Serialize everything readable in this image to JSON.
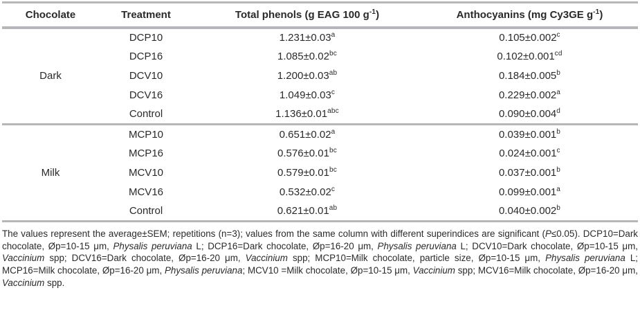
{
  "colors": {
    "page_background": "#ffffff",
    "text": "#2a2a2a",
    "rule_gray": "#b5b6b9"
  },
  "table": {
    "header": [
      {
        "key": "chocolate",
        "text": "Chocolate"
      },
      {
        "key": "treatment",
        "text": "Treatment"
      },
      {
        "key": "total-phenols",
        "text": "Total phenols (g EAG 100 g",
        "sup": "-1",
        "after": ")"
      },
      {
        "key": "anthocyanins",
        "text": "Anthocyanins (mg Cy3GE g",
        "sup": "-1",
        "after": ")"
      }
    ],
    "groups": [
      {
        "chocolate": "Dark",
        "rows": [
          {
            "treatment": "DCP10",
            "phenols": "1.231±0.03",
            "phenols_sup": "a",
            "anthocyanins": "0.105±0.002",
            "anthocyanins_sup": "c"
          },
          {
            "treatment": "DCP16",
            "phenols": "1.085±0.02",
            "phenols_sup": "bc",
            "anthocyanins": "0.102±0.001",
            "anthocyanins_sup": "cd"
          },
          {
            "treatment": "DCV10",
            "phenols": "1.200±0.03",
            "phenols_sup": "ab",
            "anthocyanins": "0.184±0.005",
            "anthocyanins_sup": "b"
          },
          {
            "treatment": "DCV16",
            "phenols": "1.049±0.03",
            "phenols_sup": "c",
            "anthocyanins": "0.229±0.002",
            "anthocyanins_sup": "a"
          },
          {
            "treatment": "Control",
            "phenols": "1.136±0.01",
            "phenols_sup": "abc",
            "anthocyanins": "0.090±0.004",
            "anthocyanins_sup": "d"
          }
        ]
      },
      {
        "chocolate": "Milk",
        "rows": [
          {
            "treatment": "MCP10",
            "phenols": "0.651±0.02",
            "phenols_sup": "a",
            "anthocyanins": "0.039±0.001",
            "anthocyanins_sup": "b"
          },
          {
            "treatment": "MCP16",
            "phenols": "0.576±0.01",
            "phenols_sup": "bc",
            "anthocyanins": "0.024±0.001",
            "anthocyanins_sup": "c"
          },
          {
            "treatment": "MCV10",
            "phenols": "0.579±0.01",
            "phenols_sup": "bc",
            "anthocyanins": "0.037±0.001",
            "anthocyanins_sup": "b"
          },
          {
            "treatment": "MCV16",
            "phenols": "0.532±0.02",
            "phenols_sup": "c",
            "anthocyanins": "0.099±0.001",
            "anthocyanins_sup": "a"
          },
          {
            "treatment": "Control",
            "phenols": "0.621±0.01",
            "phenols_sup": "ab",
            "anthocyanins": "0.040±0.002",
            "anthocyanins_sup": "b"
          }
        ]
      }
    ]
  },
  "footnote": {
    "segments": [
      {
        "text": "The values represent the average±SEM; repetitions (n=3); values from the same column with different superindices are significant (",
        "italic": false
      },
      {
        "text": "P",
        "italic": true
      },
      {
        "text": "≤0.05). DCP10=Dark chocolate, Øp=10-15 μm, ",
        "italic": false
      },
      {
        "text": "Physalis peruviana",
        "italic": true
      },
      {
        "text": " L; DCP16=Dark chocolate, Øp=16-20 μm, ",
        "italic": false
      },
      {
        "text": "Physalis peruviana",
        "italic": true
      },
      {
        "text": " L; DCV10=Dark chocolate, Øp=10-15 μm, ",
        "italic": false
      },
      {
        "text": "Vaccinium",
        "italic": true
      },
      {
        "text": " spp; DCV16=Dark chocolate, Øp=16-20 μm, ",
        "italic": false
      },
      {
        "text": "Vaccinium",
        "italic": true
      },
      {
        "text": " spp; MCP10=Milk chocolate, particle size, Øp=10-15 μm, ",
        "italic": false
      },
      {
        "text": "Physalis peruviana",
        "italic": true
      },
      {
        "text": " L; MCP16=Milk chocolate, Øp=16-20 μm, ",
        "italic": false
      },
      {
        "text": "Physalis peruviana",
        "italic": true
      },
      {
        "text": "; MCV10 =Milk chocolate, Øp=10-15 μm, ",
        "italic": false
      },
      {
        "text": "Vaccinium",
        "italic": true
      },
      {
        "text": " spp; MCV16=Milk chocolate, Øp=16-20 μm, ",
        "italic": false
      },
      {
        "text": "Vaccinium",
        "italic": true
      },
      {
        "text": " spp.",
        "italic": false
      }
    ]
  }
}
